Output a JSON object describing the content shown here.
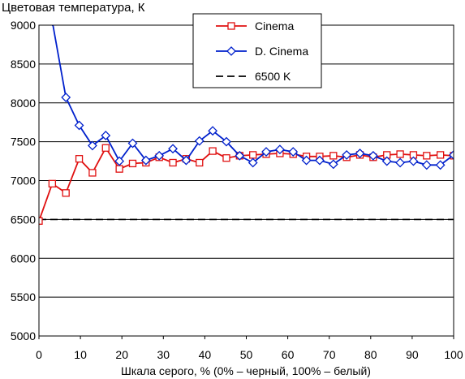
{
  "chart_data": {
    "type": "line",
    "title": "Цветовая температура, К",
    "xlabel": "Шкала серого, % (0% – черный, 100% – белый)",
    "ylabel": "",
    "xlim": [
      0,
      100
    ],
    "ylim": [
      5000,
      9000
    ],
    "xticks": [
      "0",
      "10",
      "20",
      "30",
      "40",
      "50",
      "60",
      "70",
      "80",
      "90",
      "100"
    ],
    "yticks": [
      "5000",
      "5500",
      "6000",
      "6500",
      "7000",
      "7500",
      "8000",
      "8500",
      "9000"
    ],
    "grid": "horizontal",
    "legend_position": "top-center",
    "series": [
      {
        "name": "Cinema",
        "color": "#e01010",
        "marker": "square",
        "x": [
          0,
          3.2,
          6.5,
          9.7,
          12.9,
          16.1,
          19.4,
          22.6,
          25.8,
          29.0,
          32.3,
          35.5,
          38.7,
          41.9,
          45.2,
          48.4,
          51.6,
          54.8,
          58.1,
          61.3,
          64.5,
          67.7,
          71.0,
          74.2,
          77.4,
          80.6,
          83.9,
          87.1,
          90.3,
          93.5,
          96.8,
          100
        ],
        "values": [
          6480,
          6960,
          6840,
          7280,
          7100,
          7420,
          7150,
          7220,
          7230,
          7300,
          7230,
          7280,
          7230,
          7380,
          7290,
          7320,
          7330,
          7340,
          7350,
          7340,
          7310,
          7310,
          7320,
          7300,
          7330,
          7300,
          7330,
          7340,
          7330,
          7320,
          7330,
          7320
        ]
      },
      {
        "name": "D. Cinema",
        "color": "#0020cc",
        "marker": "diamond",
        "x": [
          3.2,
          6.5,
          9.7,
          12.9,
          16.1,
          19.4,
          22.6,
          25.8,
          29.0,
          32.3,
          35.5,
          38.7,
          41.9,
          45.2,
          48.4,
          51.6,
          54.8,
          58.1,
          61.3,
          64.5,
          67.7,
          71.0,
          74.2,
          77.4,
          80.6,
          83.9,
          87.1,
          90.3,
          93.5,
          96.8,
          100
        ],
        "values": [
          9050,
          8070,
          7710,
          7450,
          7580,
          7250,
          7480,
          7260,
          7320,
          7410,
          7260,
          7510,
          7640,
          7500,
          7320,
          7230,
          7370,
          7400,
          7370,
          7260,
          7260,
          7210,
          7330,
          7350,
          7320,
          7250,
          7230,
          7250,
          7200,
          7200,
          7330
        ]
      },
      {
        "name": "6500 K",
        "color": "#000000",
        "marker": "none",
        "dashed": true,
        "x": [
          0,
          100
        ],
        "values": [
          6500,
          6500
        ]
      }
    ]
  }
}
